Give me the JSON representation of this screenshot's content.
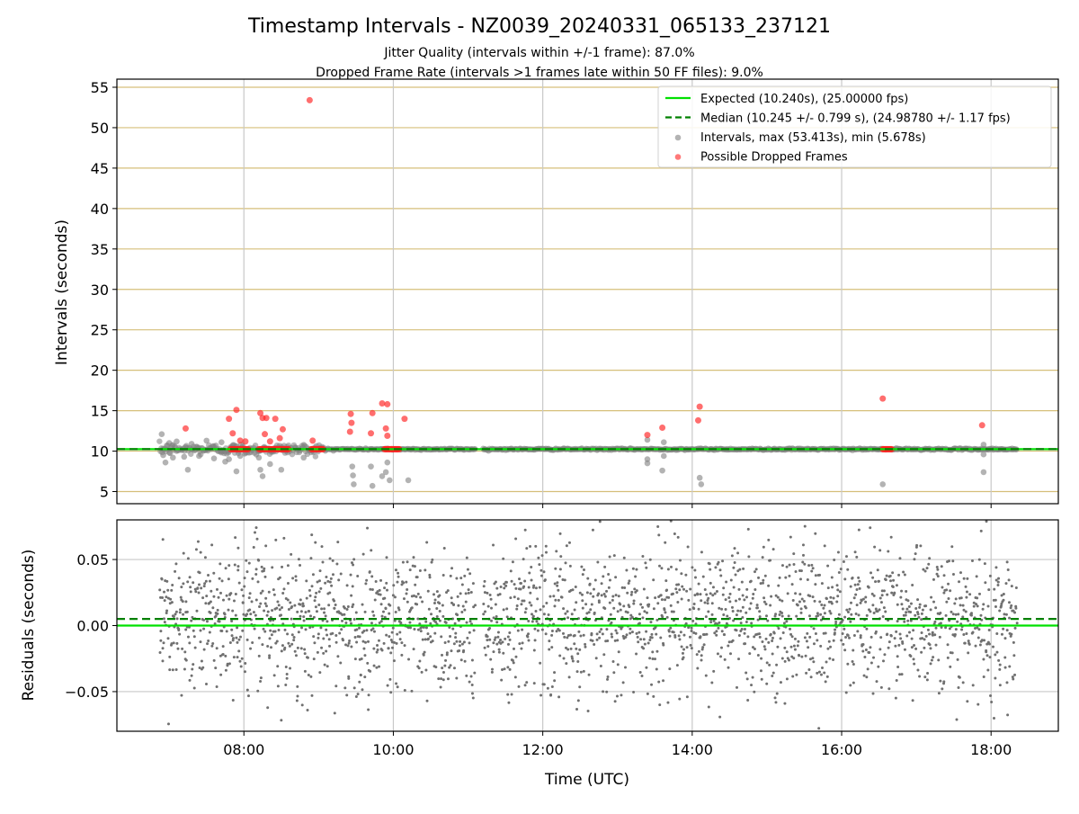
{
  "chart_data": [
    {
      "type": "scatter",
      "title": "Timestamp Intervals - NZ0039_20240331_065133_237121",
      "subtitle_lines": [
        "Jitter Quality (intervals within +/-1 frame): 87.0%",
        "Dropped Frame Rate (intervals >1 frames late within 50 FF files): 9.0%"
      ],
      "xlabel": "",
      "ylabel": "Intervals (seconds)",
      "x_unit": "hours (UTC)",
      "xlim": [
        6.3,
        18.9
      ],
      "ylim": [
        3.5,
        56
      ],
      "xticks": [
        8,
        10,
        12,
        14,
        16,
        18
      ],
      "yticks": [
        5,
        10,
        15,
        20,
        25,
        30,
        35,
        40,
        45,
        50,
        55
      ],
      "ytick_labels": [
        "5",
        "10",
        "15",
        "20",
        "25",
        "30",
        "35",
        "40",
        "45",
        "50",
        "55"
      ],
      "grid": {
        "x": true,
        "y": true,
        "y_color": "#d6bf7a",
        "x_color": "#c8c8c8"
      },
      "legend_position": "top-right",
      "legend": [
        {
          "label": "Expected (10.240s), (25.00000 fps)",
          "kind": "line",
          "color": "#00e000",
          "dash": false
        },
        {
          "label": "Median (10.245 +/- 0.799 s), (24.98780 +/- 1.17 fps)",
          "kind": "line",
          "color": "#008000",
          "dash": true
        },
        {
          "label": "Intervals, max (53.413s), min (5.678s)",
          "kind": "marker",
          "color": "#808080"
        },
        {
          "label": "Possible Dropped Frames",
          "kind": "marker",
          "color": "#ff2020"
        }
      ],
      "reference_lines": [
        {
          "name": "Expected",
          "y": 10.24,
          "color": "#00e000",
          "dash": false
        },
        {
          "name": "Median",
          "y": 10.245,
          "color": "#008000",
          "dash": true
        }
      ],
      "series": [
        {
          "name": "Intervals, max (53.413s), min (5.678s)",
          "color": "#808080",
          "baseline": {
            "x_start": 6.87,
            "x_end": 18.35,
            "y": 10.24
          },
          "gaps": [
            [
              11.1,
              11.2
            ]
          ],
          "points": [
            [
              6.9,
              12.1
            ],
            [
              6.92,
              9.5
            ],
            [
              6.95,
              8.6
            ],
            [
              7.0,
              11.0
            ],
            [
              7.05,
              9.2
            ],
            [
              7.1,
              11.2
            ],
            [
              7.2,
              9.3
            ],
            [
              7.25,
              7.7
            ],
            [
              7.3,
              10.9
            ],
            [
              7.4,
              9.4
            ],
            [
              7.5,
              11.3
            ],
            [
              7.6,
              9.1
            ],
            [
              7.7,
              11.1
            ],
            [
              7.75,
              8.7
            ],
            [
              7.8,
              9.0
            ],
            [
              7.9,
              7.5
            ],
            [
              7.95,
              9.4
            ],
            [
              8.2,
              9.2
            ],
            [
              8.22,
              7.7
            ],
            [
              8.25,
              6.9
            ],
            [
              8.35,
              8.4
            ],
            [
              8.5,
              7.7
            ],
            [
              8.8,
              9.2
            ],
            [
              9.45,
              8.1
            ],
            [
              9.46,
              7.0
            ],
            [
              9.47,
              5.9
            ],
            [
              9.7,
              8.1
            ],
            [
              9.72,
              5.7
            ],
            [
              9.85,
              6.9
            ],
            [
              9.9,
              7.4
            ],
            [
              9.92,
              8.6
            ],
            [
              9.95,
              6.4
            ],
            [
              10.2,
              6.4
            ],
            [
              13.4,
              8.5
            ],
            [
              13.4,
              9.0
            ],
            [
              13.6,
              7.6
            ],
            [
              13.62,
              9.4
            ],
            [
              14.1,
              6.7
            ],
            [
              14.12,
              5.9
            ],
            [
              16.55,
              5.9
            ],
            [
              17.9,
              7.4
            ],
            [
              17.9,
              9.6
            ],
            [
              17.9,
              10.8
            ],
            [
              13.4,
              11.4
            ],
            [
              13.62,
              11.1
            ]
          ]
        },
        {
          "name": "Possible Dropped Frames",
          "color": "#ff2020",
          "clusters": [
            {
              "x_start": 7.82,
              "x_end": 8.06,
              "y": 10.24
            },
            {
              "x_start": 8.2,
              "x_end": 8.6,
              "y": 10.24
            },
            {
              "x_start": 8.9,
              "x_end": 9.06,
              "y": 10.24
            },
            {
              "x_start": 9.88,
              "x_end": 10.08,
              "y": 10.24
            },
            {
              "x_start": 16.55,
              "x_end": 16.68,
              "y": 10.24
            }
          ],
          "points": [
            [
              7.22,
              12.8
            ],
            [
              7.8,
              14.0
            ],
            [
              7.85,
              12.2
            ],
            [
              7.9,
              15.1
            ],
            [
              7.95,
              11.3
            ],
            [
              8.02,
              11.2
            ],
            [
              8.22,
              14.7
            ],
            [
              8.25,
              14.1
            ],
            [
              8.28,
              12.1
            ],
            [
              8.3,
              14.1
            ],
            [
              8.35,
              11.2
            ],
            [
              8.42,
              14.0
            ],
            [
              8.48,
              11.6
            ],
            [
              8.52,
              12.7
            ],
            [
              8.88,
              53.4
            ],
            [
              8.92,
              11.3
            ],
            [
              9.42,
              12.4
            ],
            [
              9.43,
              14.6
            ],
            [
              9.44,
              13.5
            ],
            [
              9.72,
              14.7
            ],
            [
              9.7,
              12.2
            ],
            [
              9.85,
              15.9
            ],
            [
              9.92,
              15.8
            ],
            [
              9.9,
              12.8
            ],
            [
              9.92,
              11.9
            ],
            [
              10.15,
              14.0
            ],
            [
              13.4,
              12.0
            ],
            [
              13.6,
              12.9
            ],
            [
              14.08,
              13.8
            ],
            [
              14.1,
              15.5
            ],
            [
              16.55,
              16.5
            ],
            [
              17.88,
              13.2
            ]
          ]
        }
      ]
    },
    {
      "type": "scatter",
      "xlabel": "Time (UTC)",
      "ylabel": "Residuals (seconds)",
      "xlim": [
        6.3,
        18.9
      ],
      "ylim": [
        -0.08,
        0.08
      ],
      "xticks": [
        8,
        10,
        12,
        14,
        16,
        18
      ],
      "xtick_labels": [
        "08:00",
        "10:00",
        "12:00",
        "14:00",
        "16:00",
        "18:00"
      ],
      "yticks": [
        -0.05,
        0.0,
        0.05
      ],
      "ytick_labels": [
        "−0.05",
        "0.00",
        "0.05"
      ],
      "grid": {
        "x": true,
        "y": true
      },
      "reference_lines": [
        {
          "name": "Expected",
          "y": 0.0,
          "color": "#00e000",
          "dash": false
        },
        {
          "name": "Median",
          "y": 0.005,
          "color": "#008000",
          "dash": true
        }
      ],
      "series": [
        {
          "name": "Residuals",
          "color": "#707070",
          "x_range": [
            6.87,
            18.35
          ],
          "center": 0.005,
          "spread": 0.028,
          "count": 2300,
          "gaps": [
            [
              11.1,
              11.2
            ]
          ]
        }
      ]
    }
  ]
}
